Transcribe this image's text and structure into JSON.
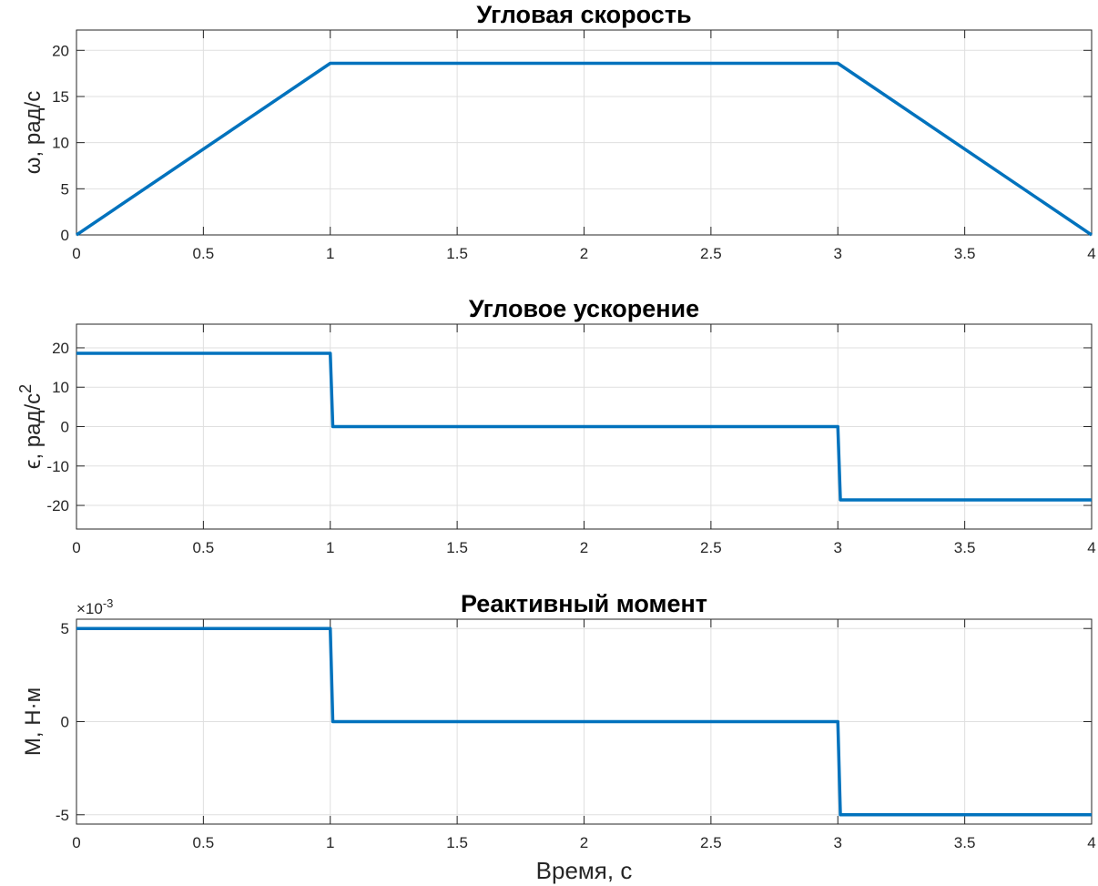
{
  "chart_data": [
    {
      "type": "line",
      "title": "Угловая скорость",
      "ylabel": "ω, рад/с",
      "xlabel": "",
      "xlim": [
        0,
        4
      ],
      "ylim": [
        0,
        22.2
      ],
      "xticks": [
        0,
        0.5,
        1,
        1.5,
        2,
        2.5,
        3,
        3.5,
        4
      ],
      "xtick_labels": [
        "0",
        "0.5",
        "1",
        "1.5",
        "2",
        "2.5",
        "3",
        "3.5",
        "4"
      ],
      "yticks": [
        0,
        5,
        10,
        15,
        20
      ],
      "ytick_labels": [
        "0",
        "5",
        "10",
        "15",
        "20"
      ],
      "grid": true,
      "series": [
        {
          "color": "#0072bd",
          "x": [
            0,
            1,
            3,
            4
          ],
          "y": [
            0,
            18.6,
            18.6,
            0
          ]
        }
      ]
    },
    {
      "type": "line",
      "title": "Угловое ускорение",
      "ylabel": "ϵ, рад/с²",
      "xlabel": "",
      "xlim": [
        0,
        4
      ],
      "ylim": [
        -26,
        26
      ],
      "xticks": [
        0,
        0.5,
        1,
        1.5,
        2,
        2.5,
        3,
        3.5,
        4
      ],
      "xtick_labels": [
        "0",
        "0.5",
        "1",
        "1.5",
        "2",
        "2.5",
        "3",
        "3.5",
        "4"
      ],
      "yticks": [
        -20,
        -10,
        0,
        10,
        20
      ],
      "ytick_labels": [
        "-20",
        "-10",
        "0",
        "10",
        "20"
      ],
      "grid": true,
      "series": [
        {
          "color": "#0072bd",
          "x": [
            0,
            1,
            1.01,
            3,
            3.01,
            4
          ],
          "y": [
            18.6,
            18.6,
            0,
            0,
            -18.6,
            -18.6
          ]
        }
      ]
    },
    {
      "type": "line",
      "title": "Реактивный момент",
      "ylabel": "M, Н·м",
      "xlabel": "Время, с",
      "exponent_label": "×10-3",
      "exponent_base": "×10",
      "exponent_power": "-3",
      "xlim": [
        0,
        4
      ],
      "ylim": [
        -0.0055,
        0.0055
      ],
      "xticks": [
        0,
        0.5,
        1,
        1.5,
        2,
        2.5,
        3,
        3.5,
        4
      ],
      "xtick_labels": [
        "0",
        "0.5",
        "1",
        "1.5",
        "2",
        "2.5",
        "3",
        "3.5",
        "4"
      ],
      "yticks": [
        -0.005,
        0,
        0.005
      ],
      "ytick_labels": [
        "-5",
        "0",
        "5"
      ],
      "grid": true,
      "series": [
        {
          "color": "#0072bd",
          "x": [
            0,
            1,
            1.01,
            3,
            3.01,
            4
          ],
          "y": [
            0.005,
            0.005,
            0,
            0,
            -0.005,
            -0.005
          ]
        }
      ]
    }
  ]
}
